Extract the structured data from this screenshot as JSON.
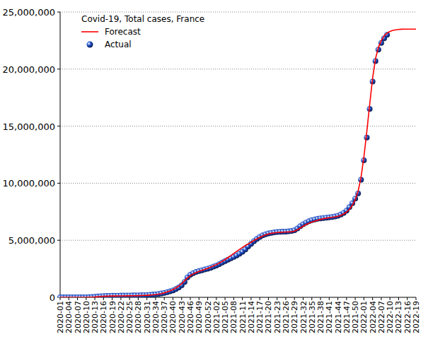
{
  "chart_data": {
    "type": "line",
    "title": "Covid-19, Total cases, France",
    "categories": [
      "2020-01",
      null,
      null,
      "2020-04",
      null,
      null,
      "2020-07",
      null,
      null,
      "2020-10",
      null,
      null,
      "2020-13",
      null,
      null,
      "2020-16",
      null,
      null,
      "2020-19",
      null,
      null,
      "2020-22",
      null,
      null,
      "2020-25",
      null,
      null,
      "2020-28",
      null,
      null,
      "2020-31",
      null,
      null,
      "2020-34",
      null,
      null,
      "2020-37",
      null,
      null,
      "2020-40",
      null,
      null,
      "2020-43",
      null,
      null,
      "2020-46",
      null,
      null,
      "2020-49",
      null,
      null,
      "2020-52",
      null,
      null,
      "2021-02",
      null,
      null,
      "2021-05",
      null,
      null,
      "2021-08",
      null,
      null,
      "2021-11",
      null,
      null,
      "2021-14",
      null,
      null,
      "2021-17",
      null,
      null,
      "2021-20",
      null,
      null,
      "2021-23",
      null,
      null,
      "2021-26",
      null,
      null,
      "2021-29",
      null,
      null,
      "2021-32",
      null,
      null,
      "2021-35",
      null,
      null,
      "2021-38",
      null,
      null,
      "2021-41",
      null,
      null,
      "2021-44",
      null,
      null,
      "2021-47",
      null,
      null,
      "2021-50",
      null,
      null,
      "2022-01",
      null,
      null,
      "2022-04",
      null,
      null,
      "2022-07",
      null,
      null,
      "2022-10",
      null,
      null,
      "2022-13",
      null,
      null,
      "2022-16",
      null,
      null,
      "2022-19"
    ],
    "series": [
      {
        "name": "Forecast",
        "type": "line",
        "color": "#ff0000",
        "line_style": "solid",
        "values": [
          0,
          0,
          0,
          0,
          0,
          0,
          0,
          0,
          0,
          2000,
          6000,
          16000,
          35000,
          58000,
          78000,
          93000,
          103000,
          110000,
          115000,
          119000,
          122000,
          125000,
          128000,
          131000,
          134000,
          138000,
          143000,
          150000,
          158000,
          168000,
          180000,
          196000,
          216000,
          243000,
          280000,
          330000,
          395000,
          475000,
          570000,
          680000,
          820000,
          990000,
          1200000,
          1450000,
          1700000,
          1900000,
          2050000,
          2170000,
          2270000,
          2360000,
          2450000,
          2540000,
          2640000,
          2750000,
          2870000,
          3000000,
          3150000,
          3310000,
          3480000,
          3660000,
          3850000,
          4030000,
          4200000,
          4370000,
          4530000,
          4680000,
          4830000,
          4980000,
          5120000,
          5250000,
          5370000,
          5470000,
          5550000,
          5610000,
          5650000,
          5680000,
          5700000,
          5710000,
          5720000,
          5730000,
          5750000,
          5800000,
          5920000,
          6080000,
          6230000,
          6370000,
          6490000,
          6590000,
          6680000,
          6760000,
          6830000,
          6890000,
          6940000,
          6980000,
          7010000,
          7050000,
          7100000,
          7180000,
          7300000,
          7470000,
          7720000,
          8060000,
          8550000,
          9300000,
          10500000,
          12300000,
          14500000,
          16900000,
          19200000,
          20900000,
          21900000,
          22500000,
          22900000,
          23150000,
          23300000,
          23390000,
          23440000,
          23470000,
          23490000,
          23500000,
          23500000,
          23500000,
          23500000,
          23500000
        ]
      },
      {
        "name": "Actual",
        "type": "scatter",
        "color": "#2255cc",
        "marker": "circle",
        "values": [
          0,
          0,
          0,
          10,
          12,
          12,
          12,
          60,
          600,
          2900,
          10000,
          25000,
          45000,
          70000,
          95000,
          115000,
          125000,
          131000,
          138000,
          142000,
          145000,
          148000,
          152000,
          156000,
          160000,
          164000,
          168000,
          175000,
          183000,
          193000,
          205000,
          220000,
          240000,
          265000,
          295000,
          335000,
          385000,
          445000,
          520000,
          610000,
          720000,
          860000,
          1050000,
          1350000,
          1750000,
          1980000,
          2120000,
          2220000,
          2300000,
          2370000,
          2440000,
          2510000,
          2590000,
          2690000,
          2790000,
          2910000,
          3040000,
          3170000,
          3300000,
          3420000,
          3540000,
          3670000,
          3820000,
          3990000,
          4200000,
          4450000,
          4690000,
          4920000,
          5120000,
          5290000,
          5430000,
          5530000,
          5600000,
          5650000,
          5690000,
          5720000,
          5740000,
          5750000,
          5760000,
          5780000,
          5810000,
          5880000,
          6030000,
          6230000,
          6410000,
          6550000,
          6660000,
          6760000,
          6830000,
          6880000,
          6920000,
          6950000,
          6980000,
          7010000,
          7040000,
          7080000,
          7150000,
          7250000,
          7400000,
          7600000,
          7900000,
          8250000,
          8650000,
          9100000,
          10300000,
          12000000,
          14000000,
          16500000,
          18900000,
          20700000,
          21700000,
          22300000,
          22700000,
          23000000,
          null,
          null,
          null,
          null,
          null,
          null,
          null,
          null,
          null,
          null
        ]
      }
    ],
    "ylim": [
      0,
      25000000
    ],
    "yticks": [
      0,
      {
        "value": 5000000,
        "label": "5,000,000"
      },
      {
        "value": 10000000,
        "label": "10,000,000"
      },
      {
        "value": 15000000,
        "label": "15,000,000"
      },
      {
        "value": 20000000,
        "label": "20,000,000"
      },
      {
        "value": 25000000,
        "label": "25,000,000"
      }
    ],
    "grid": true,
    "legend": "top-left"
  }
}
